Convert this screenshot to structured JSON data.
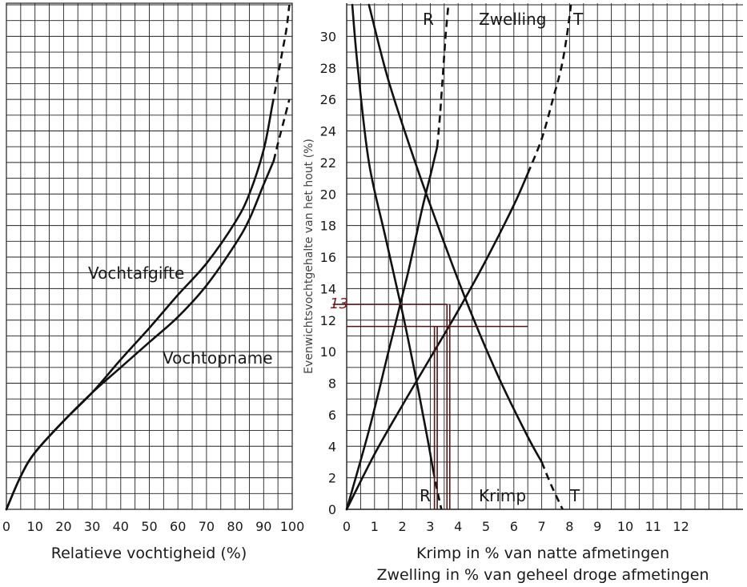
{
  "chart_data": [
    {
      "type": "line",
      "xlabel": "Relatieve vochtigheid (%)",
      "ylabel": "",
      "xlim": [
        0,
        100
      ],
      "ylim": [
        0,
        32
      ],
      "x_ticks": [
        "0",
        "10",
        "20",
        "30",
        "40",
        "50",
        "60",
        "70",
        "80",
        "90",
        "100"
      ],
      "grid": true,
      "series": [
        {
          "name": "Vochtafgifte",
          "style": "solid",
          "x": [
            0,
            5,
            10,
            20,
            30,
            40,
            50,
            60,
            70,
            80,
            85,
            90,
            93
          ],
          "y": [
            0,
            2.1,
            3.6,
            5.6,
            7.4,
            9.5,
            11.5,
            13.6,
            15.6,
            18.2,
            20,
            22.8,
            25.6
          ],
          "dashed_x": [
            93,
            95,
            96.5,
            98,
            99
          ],
          "dashed_y": [
            25.6,
            27.5,
            29,
            30.5,
            32
          ]
        },
        {
          "name": "Vochtopname",
          "style": "solid",
          "x": [
            0,
            5,
            10,
            20,
            30,
            40,
            50,
            60,
            70,
            80,
            85,
            90,
            93.5
          ],
          "y": [
            0,
            2.1,
            3.6,
            5.6,
            7.4,
            9,
            10.6,
            12.2,
            14.2,
            16.8,
            18.4,
            20.6,
            22.1
          ],
          "dashed_x": [
            93.5,
            95,
            97,
            99
          ],
          "dashed_y": [
            22.1,
            23.2,
            24.6,
            26
          ]
        }
      ]
    },
    {
      "type": "line",
      "ylabel": "Evenwichtsvochtgehalte van het hout (%)",
      "xlabel": "Krimp in % van natte afmetingen",
      "xlabel2": "Zwelling in % van geheel droge afmetingen",
      "xlim": [
        0,
        14
      ],
      "ylim": [
        0,
        32
      ],
      "x_ticks": [
        "0",
        "1",
        "2",
        "3",
        "4",
        "5",
        "6",
        "7",
        "8",
        "9",
        "10",
        "11",
        "12"
      ],
      "y_ticks": [
        "0",
        "2",
        "4",
        "6",
        "8",
        "10",
        "12",
        "14",
        "16",
        "18",
        "20",
        "22",
        "24",
        "26",
        "28",
        "30"
      ],
      "grid": true,
      "section_labels": {
        "zwelling": "Zwelling",
        "krimp": "Krimp",
        "r_top": "R",
        "t_top": "T",
        "r_bottom": "R",
        "t_bottom": "T"
      },
      "marker_label": "13",
      "series": [
        {
          "id": "zwelling-R",
          "x": [
            0,
            0.8,
            1.5,
            2.2,
            2.7,
            3.05,
            3.25
          ],
          "y": [
            0,
            5,
            10,
            15,
            19,
            21.5,
            23
          ],
          "dashed_x": [
            3.25,
            3.35,
            3.45,
            3.55,
            3.65
          ],
          "dashed_y": [
            23,
            25,
            27.5,
            30,
            32
          ]
        },
        {
          "id": "zwelling-T",
          "x": [
            0,
            1,
            2,
            3,
            4,
            5,
            6,
            6.5
          ],
          "y": [
            0,
            3.5,
            6.6,
            9.6,
            12.6,
            15.8,
            19.3,
            21.3
          ],
          "dashed_x": [
            6.5,
            7,
            7.4,
            7.7,
            7.9,
            8.05
          ],
          "dashed_y": [
            21.3,
            23.5,
            26,
            28,
            30,
            32
          ]
        },
        {
          "id": "krimp-R",
          "x": [
            0.2,
            0.4,
            0.8,
            1.4,
            2,
            2.5,
            2.9,
            3.1
          ],
          "y": [
            32,
            28,
            22,
            17.2,
            12.5,
            8.2,
            4.5,
            2.5
          ],
          "dashed_x": [
            3.1,
            3.25,
            3.4
          ],
          "dashed_y": [
            2.5,
            1.2,
            0
          ]
        },
        {
          "id": "krimp-T",
          "x": [
            0.8,
            1.5,
            2.5,
            3.5,
            4.5,
            5.5,
            6.5,
            7
          ],
          "y": [
            32,
            27.2,
            21.8,
            16.9,
            12.3,
            8.2,
            4.6,
            3
          ],
          "dashed_x": [
            7,
            7.35,
            7.75
          ],
          "dashed_y": [
            3,
            1.5,
            0
          ]
        }
      ],
      "reference_lines": [
        {
          "type": "h",
          "y": 13,
          "x0": -0.5,
          "x1": 3.6
        },
        {
          "type": "h",
          "y": 11.6,
          "x0": 0,
          "x1": 6.5
        },
        {
          "type": "v",
          "x": 3.6,
          "y0": 0,
          "y1": 13
        },
        {
          "type": "v",
          "x": 3.7,
          "y0": 0,
          "y1": 13
        },
        {
          "type": "v",
          "x": 3.15,
          "y0": 0,
          "y1": 11.6
        },
        {
          "type": "v",
          "x": 3.25,
          "y0": 0,
          "y1": 11.6
        }
      ]
    }
  ]
}
